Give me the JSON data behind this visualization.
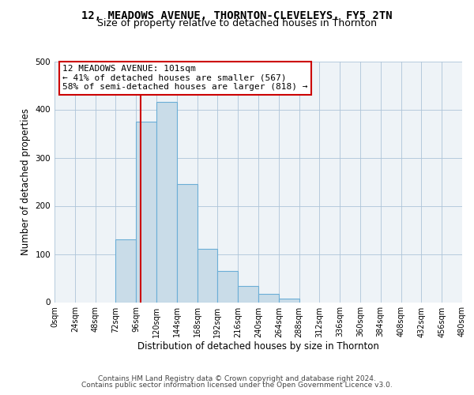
{
  "title": "12, MEADOWS AVENUE, THORNTON-CLEVELEYS, FY5 2TN",
  "subtitle": "Size of property relative to detached houses in Thornton",
  "xlabel": "Distribution of detached houses by size in Thornton",
  "ylabel": "Number of detached properties",
  "bin_edges": [
    0,
    24,
    48,
    72,
    96,
    120,
    144,
    168,
    192,
    216,
    240,
    264,
    288,
    312,
    336,
    360,
    384,
    408,
    432,
    456,
    480
  ],
  "bin_counts": [
    0,
    0,
    0,
    130,
    375,
    415,
    245,
    110,
    65,
    33,
    17,
    7,
    0,
    0,
    0,
    0,
    0,
    0,
    0,
    0
  ],
  "bar_color": "#c9dce8",
  "bar_edge_color": "#6baed6",
  "property_size": 101,
  "vline_color": "#cc0000",
  "annotation_title": "12 MEADOWS AVENUE: 101sqm",
  "annotation_line1": "← 41% of detached houses are smaller (567)",
  "annotation_line2": "58% of semi-detached houses are larger (818) →",
  "annotation_box_color": "#ffffff",
  "annotation_box_edge_color": "#cc0000",
  "ylim": [
    0,
    500
  ],
  "xlim": [
    0,
    480
  ],
  "tick_labels": [
    "0sqm",
    "24sqm",
    "48sqm",
    "72sqm",
    "96sqm",
    "120sqm",
    "144sqm",
    "168sqm",
    "192sqm",
    "216sqm",
    "240sqm",
    "264sqm",
    "288sqm",
    "312sqm",
    "336sqm",
    "360sqm",
    "384sqm",
    "408sqm",
    "432sqm",
    "456sqm",
    "480sqm"
  ],
  "footer1": "Contains HM Land Registry data © Crown copyright and database right 2024.",
  "footer2": "Contains public sector information licensed under the Open Government Licence v3.0.",
  "background_color": "#eef3f7",
  "grid_color": "#adc4d8",
  "title_fontsize": 10,
  "subtitle_fontsize": 9,
  "axis_label_fontsize": 8.5,
  "tick_fontsize": 7,
  "annotation_fontsize": 8,
  "footer_fontsize": 6.5
}
